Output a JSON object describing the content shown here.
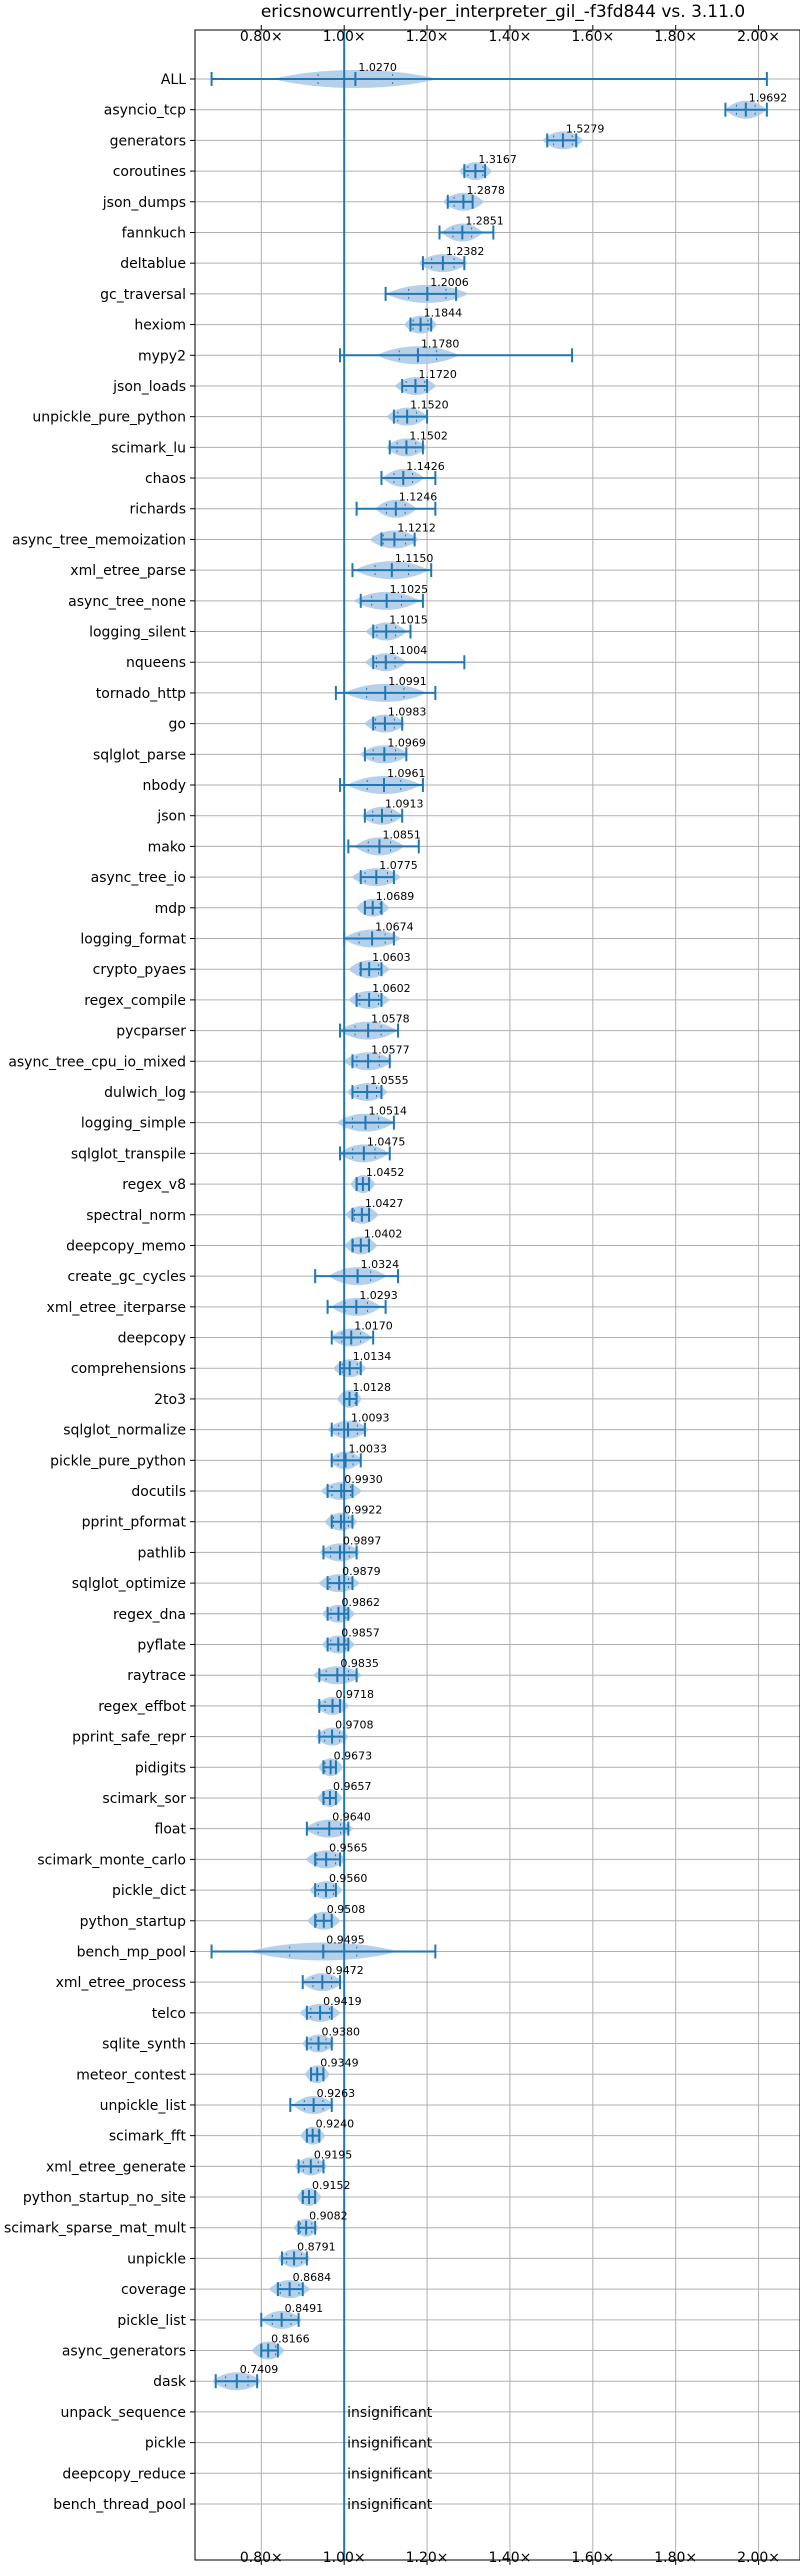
{
  "chart_data": {
    "type": "violin",
    "title": "ericsnowcurrently-per_interpreter_gil_-f3fd844 vs. 3.11.0",
    "xlim": [
      0.64,
      2.1
    ],
    "xticks": [
      0.8,
      1.0,
      1.2,
      1.4,
      1.6,
      1.8,
      2.0
    ],
    "xtick_labels": [
      "0.80×",
      "1.00×",
      "1.20×",
      "1.40×",
      "1.60×",
      "1.80×",
      "2.00×"
    ],
    "grid": true,
    "reference_line": 1.0,
    "colors": {
      "violin": "#a9c8e6",
      "line": "#1f77b4",
      "grid": "#b0b0b0"
    },
    "insignificant_label": "insignificant",
    "benchmarks": [
      {
        "name": "ALL",
        "value": "1.0270",
        "mean": 1.027,
        "min": 0.68,
        "max": 2.02,
        "width": 0.2
      },
      {
        "name": "asyncio_tcp",
        "value": "1.9692",
        "mean": 1.9692,
        "min": 1.92,
        "max": 2.02,
        "width": 0.05
      },
      {
        "name": "generators",
        "value": "1.5279",
        "mean": 1.5279,
        "min": 1.49,
        "max": 1.56,
        "width": 0.05
      },
      {
        "name": "coroutines",
        "value": "1.3167",
        "mean": 1.3167,
        "min": 1.29,
        "max": 1.34,
        "width": 0.04
      },
      {
        "name": "json_dumps",
        "value": "1.2878",
        "mean": 1.2878,
        "min": 1.25,
        "max": 1.31,
        "width": 0.05
      },
      {
        "name": "fannkuch",
        "value": "1.2851",
        "mean": 1.2851,
        "min": 1.23,
        "max": 1.36,
        "width": 0.05
      },
      {
        "name": "deltablue",
        "value": "1.2382",
        "mean": 1.2382,
        "min": 1.19,
        "max": 1.29,
        "width": 0.06
      },
      {
        "name": "gc_traversal",
        "value": "1.2006",
        "mean": 1.2006,
        "min": 1.1,
        "max": 1.27,
        "width": 0.1
      },
      {
        "name": "hexiom",
        "value": "1.1844",
        "mean": 1.1844,
        "min": 1.16,
        "max": 1.21,
        "width": 0.04
      },
      {
        "name": "mypy2",
        "value": "1.1780",
        "mean": 1.178,
        "min": 0.99,
        "max": 1.55,
        "width": 0.1
      },
      {
        "name": "json_loads",
        "value": "1.1720",
        "mean": 1.172,
        "min": 1.14,
        "max": 1.2,
        "width": 0.05
      },
      {
        "name": "unpickle_pure_python",
        "value": "1.1520",
        "mean": 1.152,
        "min": 1.12,
        "max": 1.2,
        "width": 0.05
      },
      {
        "name": "scimark_lu",
        "value": "1.1502",
        "mean": 1.1502,
        "min": 1.11,
        "max": 1.19,
        "width": 0.05
      },
      {
        "name": "chaos",
        "value": "1.1426",
        "mean": 1.1426,
        "min": 1.09,
        "max": 1.22,
        "width": 0.05
      },
      {
        "name": "richards",
        "value": "1.1246",
        "mean": 1.1246,
        "min": 1.03,
        "max": 1.22,
        "width": 0.05
      },
      {
        "name": "async_tree_memoization",
        "value": "1.1212",
        "mean": 1.1212,
        "min": 1.09,
        "max": 1.17,
        "width": 0.06
      },
      {
        "name": "xml_etree_parse",
        "value": "1.1150",
        "mean": 1.115,
        "min": 1.02,
        "max": 1.21,
        "width": 0.09
      },
      {
        "name": "async_tree_none",
        "value": "1.1025",
        "mean": 1.1025,
        "min": 1.04,
        "max": 1.19,
        "width": 0.08
      },
      {
        "name": "logging_silent",
        "value": "1.1015",
        "mean": 1.1015,
        "min": 1.07,
        "max": 1.16,
        "width": 0.05
      },
      {
        "name": "nqueens",
        "value": "1.1004",
        "mean": 1.1004,
        "min": 1.07,
        "max": 1.29,
        "width": 0.05
      },
      {
        "name": "tornado_http",
        "value": "1.0991",
        "mean": 1.0991,
        "min": 0.98,
        "max": 1.22,
        "width": 0.1
      },
      {
        "name": "go",
        "value": "1.0983",
        "mean": 1.0983,
        "min": 1.07,
        "max": 1.14,
        "width": 0.05
      },
      {
        "name": "sqlglot_parse",
        "value": "1.0969",
        "mean": 1.0969,
        "min": 1.05,
        "max": 1.15,
        "width": 0.06
      },
      {
        "name": "nbody",
        "value": "1.0961",
        "mean": 1.0961,
        "min": 0.99,
        "max": 1.19,
        "width": 0.09
      },
      {
        "name": "json",
        "value": "1.0913",
        "mean": 1.0913,
        "min": 1.05,
        "max": 1.14,
        "width": 0.05
      },
      {
        "name": "mako",
        "value": "1.0851",
        "mean": 1.0851,
        "min": 1.01,
        "max": 1.18,
        "width": 0.06
      },
      {
        "name": "async_tree_io",
        "value": "1.0775",
        "mean": 1.0775,
        "min": 1.04,
        "max": 1.12,
        "width": 0.06
      },
      {
        "name": "mdp",
        "value": "1.0689",
        "mean": 1.0689,
        "min": 1.05,
        "max": 1.09,
        "width": 0.04
      },
      {
        "name": "logging_format",
        "value": "1.0674",
        "mean": 1.0674,
        "min": 1.0,
        "max": 1.12,
        "width": 0.07
      },
      {
        "name": "crypto_pyaes",
        "value": "1.0603",
        "mean": 1.0603,
        "min": 1.04,
        "max": 1.09,
        "width": 0.05
      },
      {
        "name": "regex_compile",
        "value": "1.0602",
        "mean": 1.0602,
        "min": 1.03,
        "max": 1.09,
        "width": 0.05
      },
      {
        "name": "pycparser",
        "value": "1.0578",
        "mean": 1.0578,
        "min": 0.99,
        "max": 1.13,
        "width": 0.07
      },
      {
        "name": "async_tree_cpu_io_mixed",
        "value": "1.0577",
        "mean": 1.0577,
        "min": 1.02,
        "max": 1.11,
        "width": 0.06
      },
      {
        "name": "dulwich_log",
        "value": "1.0555",
        "mean": 1.0555,
        "min": 1.02,
        "max": 1.09,
        "width": 0.05
      },
      {
        "name": "logging_simple",
        "value": "1.0514",
        "mean": 1.0514,
        "min": 1.0,
        "max": 1.12,
        "width": 0.07
      },
      {
        "name": "sqlglot_transpile",
        "value": "1.0475",
        "mean": 1.0475,
        "min": 0.99,
        "max": 1.11,
        "width": 0.06
      },
      {
        "name": "regex_v8",
        "value": "1.0452",
        "mean": 1.0452,
        "min": 1.03,
        "max": 1.06,
        "width": 0.03
      },
      {
        "name": "spectral_norm",
        "value": "1.0427",
        "mean": 1.0427,
        "min": 1.02,
        "max": 1.06,
        "width": 0.04
      },
      {
        "name": "deepcopy_memo",
        "value": "1.0402",
        "mean": 1.0402,
        "min": 1.02,
        "max": 1.06,
        "width": 0.04
      },
      {
        "name": "create_gc_cycles",
        "value": "1.0324",
        "mean": 1.0324,
        "min": 0.93,
        "max": 1.13,
        "width": 0.07
      },
      {
        "name": "xml_etree_iterparse",
        "value": "1.0293",
        "mean": 1.0293,
        "min": 0.96,
        "max": 1.1,
        "width": 0.06
      },
      {
        "name": "deepcopy",
        "value": "1.0170",
        "mean": 1.017,
        "min": 0.97,
        "max": 1.07,
        "width": 0.05
      },
      {
        "name": "comprehensions",
        "value": "1.0134",
        "mean": 1.0134,
        "min": 0.99,
        "max": 1.04,
        "width": 0.04
      },
      {
        "name": "2to3",
        "value": "1.0128",
        "mean": 1.0128,
        "min": 1.0,
        "max": 1.03,
        "width": 0.03
      },
      {
        "name": "sqlglot_normalize",
        "value": "1.0093",
        "mean": 1.0093,
        "min": 0.97,
        "max": 1.05,
        "width": 0.05
      },
      {
        "name": "pickle_pure_python",
        "value": "1.0033",
        "mean": 1.0033,
        "min": 0.97,
        "max": 1.04,
        "width": 0.04
      },
      {
        "name": "docutils",
        "value": "0.9930",
        "mean": 0.993,
        "min": 0.96,
        "max": 1.02,
        "width": 0.05
      },
      {
        "name": "pprint_pformat",
        "value": "0.9922",
        "mean": 0.9922,
        "min": 0.97,
        "max": 1.02,
        "width": 0.04
      },
      {
        "name": "pathlib",
        "value": "0.9897",
        "mean": 0.9897,
        "min": 0.95,
        "max": 1.03,
        "width": 0.05
      },
      {
        "name": "sqlglot_optimize",
        "value": "0.9879",
        "mean": 0.9879,
        "min": 0.96,
        "max": 1.02,
        "width": 0.05
      },
      {
        "name": "regex_dna",
        "value": "0.9862",
        "mean": 0.9862,
        "min": 0.96,
        "max": 1.01,
        "width": 0.04
      },
      {
        "name": "pyflate",
        "value": "0.9857",
        "mean": 0.9857,
        "min": 0.96,
        "max": 1.01,
        "width": 0.04
      },
      {
        "name": "raytrace",
        "value": "0.9835",
        "mean": 0.9835,
        "min": 0.94,
        "max": 1.03,
        "width": 0.06
      },
      {
        "name": "regex_effbot",
        "value": "0.9718",
        "mean": 0.9718,
        "min": 0.94,
        "max": 0.99,
        "width": 0.04
      },
      {
        "name": "pprint_safe_repr",
        "value": "0.9708",
        "mean": 0.9708,
        "min": 0.94,
        "max": 1.0,
        "width": 0.04
      },
      {
        "name": "pidigits",
        "value": "0.9673",
        "mean": 0.9673,
        "min": 0.95,
        "max": 0.98,
        "width": 0.03
      },
      {
        "name": "scimark_sor",
        "value": "0.9657",
        "mean": 0.9657,
        "min": 0.95,
        "max": 0.98,
        "width": 0.03
      },
      {
        "name": "float",
        "value": "0.9640",
        "mean": 0.964,
        "min": 0.91,
        "max": 1.01,
        "width": 0.06
      },
      {
        "name": "scimark_monte_carlo",
        "value": "0.9565",
        "mean": 0.9565,
        "min": 0.93,
        "max": 0.99,
        "width": 0.05
      },
      {
        "name": "pickle_dict",
        "value": "0.9560",
        "mean": 0.956,
        "min": 0.93,
        "max": 0.98,
        "width": 0.04
      },
      {
        "name": "python_startup",
        "value": "0.9508",
        "mean": 0.9508,
        "min": 0.93,
        "max": 0.97,
        "width": 0.04
      },
      {
        "name": "bench_mp_pool",
        "value": "0.9495",
        "mean": 0.9495,
        "min": 0.68,
        "max": 1.22,
        "width": 0.18
      },
      {
        "name": "xml_etree_process",
        "value": "0.9472",
        "mean": 0.9472,
        "min": 0.9,
        "max": 0.99,
        "width": 0.05
      },
      {
        "name": "telco",
        "value": "0.9419",
        "mean": 0.9419,
        "min": 0.91,
        "max": 0.97,
        "width": 0.05
      },
      {
        "name": "sqlite_synth",
        "value": "0.9380",
        "mean": 0.938,
        "min": 0.91,
        "max": 0.97,
        "width": 0.04
      },
      {
        "name": "meteor_contest",
        "value": "0.9349",
        "mean": 0.9349,
        "min": 0.92,
        "max": 0.95,
        "width": 0.03
      },
      {
        "name": "unpickle_list",
        "value": "0.9263",
        "mean": 0.9263,
        "min": 0.87,
        "max": 0.97,
        "width": 0.05
      },
      {
        "name": "scimark_fft",
        "value": "0.9240",
        "mean": 0.924,
        "min": 0.91,
        "max": 0.94,
        "width": 0.03
      },
      {
        "name": "xml_etree_generate",
        "value": "0.9195",
        "mean": 0.9195,
        "min": 0.89,
        "max": 0.95,
        "width": 0.04
      },
      {
        "name": "python_startup_no_site",
        "value": "0.9152",
        "mean": 0.9152,
        "min": 0.9,
        "max": 0.93,
        "width": 0.03
      },
      {
        "name": "scimark_sparse_mat_mult",
        "value": "0.9082",
        "mean": 0.9082,
        "min": 0.89,
        "max": 0.93,
        "width": 0.03
      },
      {
        "name": "unpickle",
        "value": "0.8791",
        "mean": 0.8791,
        "min": 0.85,
        "max": 0.91,
        "width": 0.04
      },
      {
        "name": "coverage",
        "value": "0.8684",
        "mean": 0.8684,
        "min": 0.84,
        "max": 0.9,
        "width": 0.05
      },
      {
        "name": "pickle_list",
        "value": "0.8491",
        "mean": 0.8491,
        "min": 0.8,
        "max": 0.89,
        "width": 0.05
      },
      {
        "name": "async_generators",
        "value": "0.8166",
        "mean": 0.8166,
        "min": 0.8,
        "max": 0.84,
        "width": 0.04
      },
      {
        "name": "dask",
        "value": "0.7409",
        "mean": 0.7409,
        "min": 0.69,
        "max": 0.79,
        "width": 0.06
      },
      {
        "name": "unpack_sequence",
        "insignificant": true
      },
      {
        "name": "pickle",
        "insignificant": true
      },
      {
        "name": "deepcopy_reduce",
        "insignificant": true
      },
      {
        "name": "bench_thread_pool",
        "insignificant": true
      }
    ]
  }
}
